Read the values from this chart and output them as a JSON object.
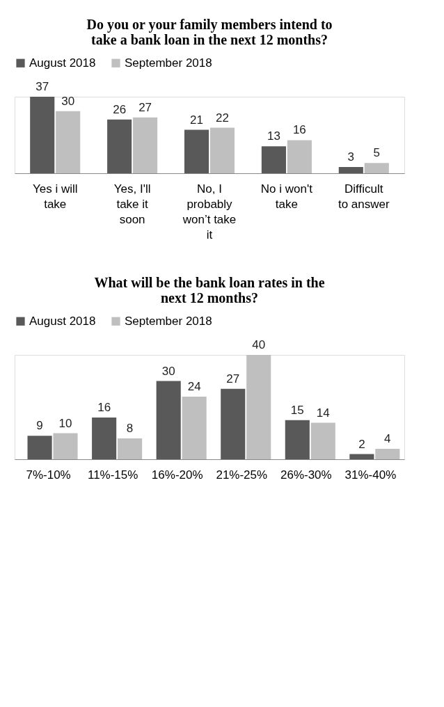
{
  "chart_data": [
    {
      "type": "bar",
      "title": "Do you or your family members intend to take a bank loan in the next 12 months?",
      "categories": [
        "Yes i will take",
        "Yes, I'll take it soon",
        "No, I probably won’t take it",
        "No i won't take",
        "Difficult to answer"
      ],
      "series": [
        {
          "name": "August 2018",
          "color": "#595959",
          "values": [
            37,
            26,
            21,
            13,
            3
          ]
        },
        {
          "name": "September 2018",
          "color": "#bfbfbf",
          "values": [
            30,
            27,
            22,
            16,
            5
          ]
        }
      ],
      "data_labels": true,
      "legend": "top",
      "grid": false,
      "tick_labels": "x"
    },
    {
      "type": "bar",
      "title": "What will be the bank loan rates in the next 12 months?",
      "categories": [
        "7%-10%",
        "11%-15%",
        "16%-20%",
        "21%-25%",
        "26%-30%",
        "31%-40%"
      ],
      "series": [
        {
          "name": "August 2018",
          "color": "#595959",
          "values": [
            9,
            16,
            30,
            27,
            15,
            2
          ]
        },
        {
          "name": "September 2018",
          "color": "#bfbfbf",
          "values": [
            10,
            8,
            24,
            40,
            14,
            4
          ]
        }
      ],
      "data_labels": true,
      "legend": "top",
      "grid": false,
      "tick_labels": "x"
    }
  ]
}
